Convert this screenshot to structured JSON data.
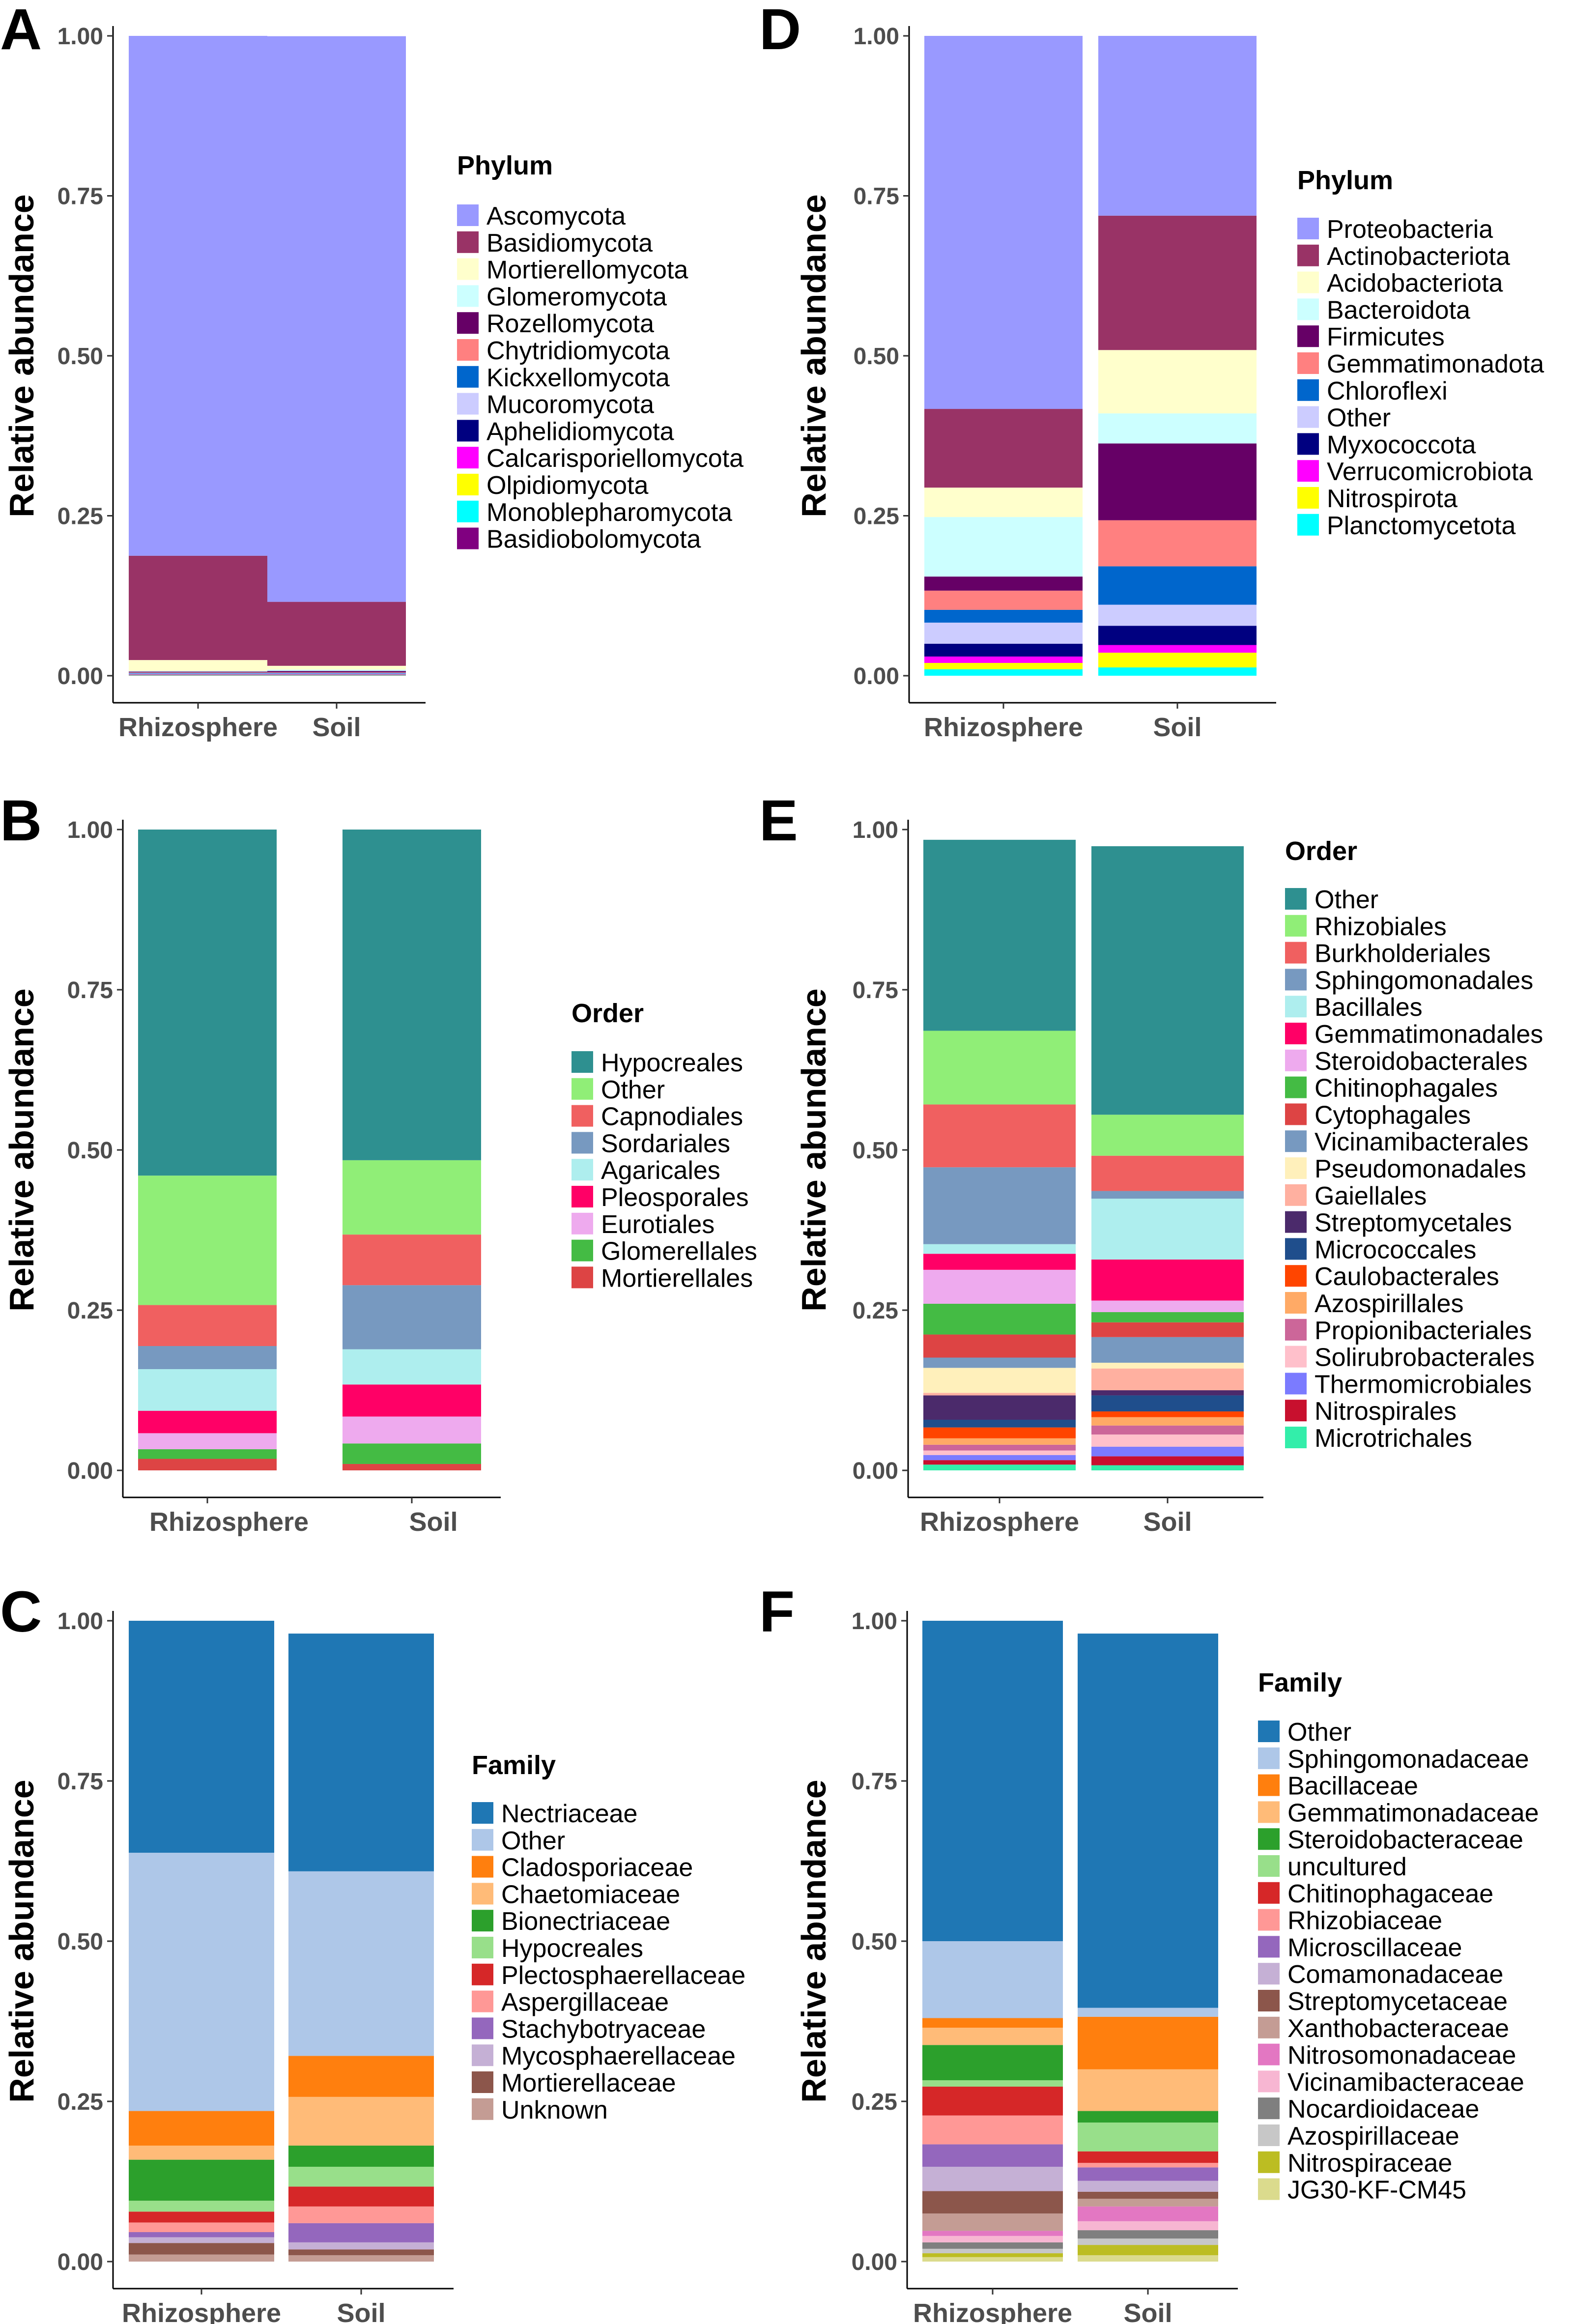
{
  "y_axis_title": "Relative abundance",
  "chart_data": [
    {
      "id": "A",
      "panel": "A",
      "type": "stacked-bar",
      "categories": [
        "Rhizosphere",
        "Soil"
      ],
      "ylabel": "Relative abundance",
      "xlabel": "",
      "ylim": [
        0,
        1
      ],
      "yticks": [
        "0.00",
        "0.25",
        "0.50",
        "0.75",
        "1.00"
      ],
      "legend_title": "Phylum",
      "series": [
        {
          "name": "Ascomycota",
          "color": "#9999FF",
          "values": [
            0.814,
            0.884
          ]
        },
        {
          "name": "Basidiomycota",
          "color": "#993366",
          "values": [
            0.163,
            0.1
          ]
        },
        {
          "name": "Mortierellomycota",
          "color": "#FFFFCC",
          "values": [
            0.017,
            0.006
          ]
        },
        {
          "name": "Glomeromycota",
          "color": "#CCFFFF",
          "values": [
            0.001,
            0.002
          ]
        },
        {
          "name": "Rozellomycota",
          "color": "#660066",
          "values": [
            0.001,
            0.002
          ]
        },
        {
          "name": "Chytridiomycota",
          "color": "#FF8080",
          "values": [
            0.001,
            0.001
          ]
        },
        {
          "name": "Kickxellomycota",
          "color": "#0066CC",
          "values": [
            0.001,
            0.001
          ]
        },
        {
          "name": "Mucoromycota",
          "color": "#CCCCFF",
          "values": [
            0.001,
            0.001
          ]
        },
        {
          "name": "Aphelidiomycota",
          "color": "#000080",
          "values": [
            0.0005,
            0.0005
          ]
        },
        {
          "name": "Calcarisporiellomycota",
          "color": "#FF00FF",
          "values": [
            0.0005,
            0.0005
          ]
        },
        {
          "name": "Olpidiomycota",
          "color": "#FFFF00",
          "values": [
            0.0005,
            0.0005
          ]
        },
        {
          "name": "Monoblepharomycota",
          "color": "#00FFFF",
          "values": [
            0.0005,
            0.0005
          ]
        },
        {
          "name": "Basidiobolomycota",
          "color": "#800080",
          "values": [
            0.0005,
            0.0005
          ]
        }
      ]
    },
    {
      "id": "B",
      "panel": "B",
      "type": "stacked-bar",
      "categories": [
        "Rhizosphere",
        "Soil"
      ],
      "ylabel": "Relative abundance",
      "xlabel": "",
      "ylim": [
        0,
        1
      ],
      "yticks": [
        "0.00",
        "0.25",
        "0.50",
        "0.75",
        "1.00"
      ],
      "legend_title": "Order",
      "series": [
        {
          "name": "Hypocreales",
          "color": "#2E9090",
          "values": [
            0.54,
            0.516
          ]
        },
        {
          "name": "Other",
          "color": "#90EE77",
          "values": [
            0.202,
            0.116
          ]
        },
        {
          "name": "Capnodiales",
          "color": "#F06060",
          "values": [
            0.064,
            0.079
          ]
        },
        {
          "name": "Sordariales",
          "color": "#7799C0",
          "values": [
            0.036,
            0.1
          ]
        },
        {
          "name": "Agaricales",
          "color": "#AEEEEE",
          "values": [
            0.065,
            0.055
          ]
        },
        {
          "name": "Pleosporales",
          "color": "#FF0066",
          "values": [
            0.035,
            0.05
          ]
        },
        {
          "name": "Eurotiales",
          "color": "#EEAAEE",
          "values": [
            0.025,
            0.042
          ]
        },
        {
          "name": "Glomerellales",
          "color": "#44BB44",
          "values": [
            0.015,
            0.032
          ]
        },
        {
          "name": "Mortierellales",
          "color": "#DD4444",
          "values": [
            0.018,
            0.01
          ]
        }
      ]
    },
    {
      "id": "C",
      "panel": "C",
      "type": "stacked-bar",
      "categories": [
        "Rhizosphere",
        "Soil"
      ],
      "ylabel": "Relative abundance",
      "xlabel": "",
      "ylim": [
        0,
        1
      ],
      "yticks": [
        "0.00",
        "0.25",
        "0.50",
        "0.75",
        "1.00"
      ],
      "legend_title": "Family",
      "series": [
        {
          "name": "Nectriaceae",
          "color": "#1F77B4",
          "values": [
            0.362,
            0.371
          ]
        },
        {
          "name": "Other",
          "color": "#AEC7E8",
          "values": [
            0.403,
            0.288
          ]
        },
        {
          "name": "Cladosporiaceae",
          "color": "#FF7F0E",
          "values": [
            0.054,
            0.064
          ]
        },
        {
          "name": "Chaetomiaceae",
          "color": "#FFBB78",
          "values": [
            0.022,
            0.076
          ]
        },
        {
          "name": "Bionectriaceae",
          "color": "#2CA02C",
          "values": [
            0.064,
            0.033
          ]
        },
        {
          "name": "Hypocreales",
          "color": "#98DF8A",
          "values": [
            0.017,
            0.031
          ]
        },
        {
          "name": "Plectosphaerellaceae",
          "color": "#D62728",
          "values": [
            0.017,
            0.031
          ]
        },
        {
          "name": "Aspergillaceae",
          "color": "#FF9896",
          "values": [
            0.015,
            0.026
          ]
        },
        {
          "name": "Stachybotryaceae",
          "color": "#9467BD",
          "values": [
            0.008,
            0.03
          ]
        },
        {
          "name": "Mycosphaerellaceae",
          "color": "#C5B0D5",
          "values": [
            0.009,
            0.011
          ]
        },
        {
          "name": "Mortierellaceae",
          "color": "#8C564B",
          "values": [
            0.018,
            0.009
          ]
        },
        {
          "name": "Unknown",
          "color": "#C49C94",
          "values": [
            0.011,
            0.01
          ]
        }
      ]
    },
    {
      "id": "D",
      "panel": "D",
      "type": "stacked-bar",
      "categories": [
        "Rhizosphere",
        "Soil"
      ],
      "ylabel": "Relative abundance",
      "xlabel": "",
      "ylim": [
        0,
        1
      ],
      "yticks": [
        "0.00",
        "0.25",
        "0.50",
        "0.75",
        "1.00"
      ],
      "legend_title": "Phylum",
      "series": [
        {
          "name": "Proteobacteria",
          "color": "#9999FF",
          "values": [
            0.583,
            0.281
          ]
        },
        {
          "name": "Actinobacteriota",
          "color": "#993366",
          "values": [
            0.123,
            0.21
          ]
        },
        {
          "name": "Acidobacteriota",
          "color": "#FFFFCC",
          "values": [
            0.046,
            0.099
          ]
        },
        {
          "name": "Bacteroidota",
          "color": "#CCFFFF",
          "values": [
            0.093,
            0.047
          ]
        },
        {
          "name": "Firmicutes",
          "color": "#660066",
          "values": [
            0.022,
            0.12
          ]
        },
        {
          "name": "Gemmatimonadota",
          "color": "#FF8080",
          "values": [
            0.03,
            0.072
          ]
        },
        {
          "name": "Chloroflexi",
          "color": "#0066CC",
          "values": [
            0.02,
            0.06
          ]
        },
        {
          "name": "Other",
          "color": "#CCCCFF",
          "values": [
            0.033,
            0.033
          ]
        },
        {
          "name": "Myxococcota",
          "color": "#000080",
          "values": [
            0.02,
            0.03
          ]
        },
        {
          "name": "Verrucomicrobiota",
          "color": "#FF00FF",
          "values": [
            0.01,
            0.012
          ]
        },
        {
          "name": "Nitrospirota",
          "color": "#FFFF00",
          "values": [
            0.01,
            0.023
          ]
        },
        {
          "name": "Planctomycetota",
          "color": "#00FFFF",
          "values": [
            0.01,
            0.013
          ]
        }
      ]
    },
    {
      "id": "E",
      "panel": "E",
      "type": "stacked-bar",
      "categories": [
        "Rhizosphere",
        "Soil"
      ],
      "ylabel": "Relative abundance",
      "xlabel": "",
      "ylim": [
        0,
        1
      ],
      "yticks": [
        "0.00",
        "0.25",
        "0.50",
        "0.75",
        "1.00"
      ],
      "legend_title": "Order",
      "series": [
        {
          "name": "Other",
          "color": "#2E9090",
          "values": [
            0.298,
            0.419
          ]
        },
        {
          "name": "Rhizobiales",
          "color": "#90EE77",
          "values": [
            0.115,
            0.064
          ]
        },
        {
          "name": "Burkholderiales",
          "color": "#F06060",
          "values": [
            0.098,
            0.055
          ]
        },
        {
          "name": "Sphingomonadales",
          "color": "#7799C0",
          "values": [
            0.12,
            0.012
          ]
        },
        {
          "name": "Bacillales",
          "color": "#AEEEEE",
          "values": [
            0.015,
            0.095
          ]
        },
        {
          "name": "Gemmatimonadales",
          "color": "#FF0066",
          "values": [
            0.025,
            0.064
          ]
        },
        {
          "name": "Steroidobacterales",
          "color": "#EEAAEE",
          "values": [
            0.053,
            0.018
          ]
        },
        {
          "name": "Chitinophagales",
          "color": "#44BB44",
          "values": [
            0.048,
            0.016
          ]
        },
        {
          "name": "Cytophagales",
          "color": "#DD4444",
          "values": [
            0.036,
            0.023
          ]
        },
        {
          "name": "Vicinamibacterales",
          "color": "#7799C0",
          "values": [
            0.016,
            0.04
          ]
        },
        {
          "name": "Pseudomonadales",
          "color": "#FFF0BB",
          "values": [
            0.039,
            0.009
          ]
        },
        {
          "name": "Gaiellales",
          "color": "#FFB0A0",
          "values": [
            0.004,
            0.034
          ]
        },
        {
          "name": "Streptomycetales",
          "color": "#4B2A6B",
          "values": [
            0.038,
            0.008
          ]
        },
        {
          "name": "Micrococcales",
          "color": "#1F4E8C",
          "values": [
            0.012,
            0.025
          ]
        },
        {
          "name": "Caulobacterales",
          "color": "#FF4500",
          "values": [
            0.017,
            0.009
          ]
        },
        {
          "name": "Azospirillales",
          "color": "#FFAA66",
          "values": [
            0.01,
            0.013
          ]
        },
        {
          "name": "Propionibacteriales",
          "color": "#CC6699",
          "values": [
            0.009,
            0.014
          ]
        },
        {
          "name": "Solirubrobacterales",
          "color": "#FFC0CB",
          "values": [
            0.007,
            0.019
          ]
        },
        {
          "name": "Thermomicrobiales",
          "color": "#7B7BFF",
          "values": [
            0.008,
            0.015
          ]
        },
        {
          "name": "Nitrospirales",
          "color": "#C8102E",
          "values": [
            0.007,
            0.014
          ]
        },
        {
          "name": "Microtrichales",
          "color": "#33EEAA",
          "values": [
            0.009,
            0.008
          ]
        }
      ]
    },
    {
      "id": "F",
      "panel": "F",
      "type": "stacked-bar",
      "categories": [
        "Rhizosphere",
        "Soil"
      ],
      "ylabel": "Relative abundance",
      "xlabel": "",
      "ylim": [
        0,
        1
      ],
      "yticks": [
        "0.00",
        "0.25",
        "0.50",
        "0.75",
        "1.00"
      ],
      "legend_title": "Family",
      "series": [
        {
          "name": "Other",
          "color": "#1F77B4",
          "values": [
            0.5,
            0.584
          ]
        },
        {
          "name": "Sphingomonadaceae",
          "color": "#AEC7E8",
          "values": [
            0.12,
            0.014
          ]
        },
        {
          "name": "Bacillaceae",
          "color": "#FF7F0E",
          "values": [
            0.015,
            0.082
          ]
        },
        {
          "name": "Gemmatimonadaceae",
          "color": "#FFBB78",
          "values": [
            0.027,
            0.065
          ]
        },
        {
          "name": "Steroidobacteraceae",
          "color": "#2CA02C",
          "values": [
            0.055,
            0.018
          ]
        },
        {
          "name": "uncultured",
          "color": "#98DF8A",
          "values": [
            0.01,
            0.045
          ]
        },
        {
          "name": "Chitinophagaceae",
          "color": "#D62728",
          "values": [
            0.045,
            0.018
          ]
        },
        {
          "name": "Rhizobiaceae",
          "color": "#FF9896",
          "values": [
            0.045,
            0.007
          ]
        },
        {
          "name": "Microscillaceae",
          "color": "#9467BD",
          "values": [
            0.035,
            0.021
          ]
        },
        {
          "name": "Comamonadaceae",
          "color": "#C5B0D5",
          "values": [
            0.038,
            0.017
          ]
        },
        {
          "name": "Streptomycetaceae",
          "color": "#8C564B",
          "values": [
            0.035,
            0.011
          ]
        },
        {
          "name": "Xanthobacteraceae",
          "color": "#C49C94",
          "values": [
            0.027,
            0.012
          ]
        },
        {
          "name": "Nitrosomonadaceae",
          "color": "#E377C2",
          "values": [
            0.008,
            0.023
          ]
        },
        {
          "name": "Vicinamibacteraceae",
          "color": "#F7B6D2",
          "values": [
            0.01,
            0.014
          ]
        },
        {
          "name": "Nocardioidaceae",
          "color": "#7F7F7F",
          "values": [
            0.01,
            0.013
          ]
        },
        {
          "name": "Azospirillaceae",
          "color": "#C7C7C7",
          "values": [
            0.007,
            0.01
          ]
        },
        {
          "name": "Nitrospiraceae",
          "color": "#BCBD22",
          "values": [
            0.006,
            0.016
          ]
        },
        {
          "name": "JG30-KF-CM45",
          "color": "#DBDB8D",
          "values": [
            0.007,
            0.01
          ]
        }
      ]
    }
  ]
}
